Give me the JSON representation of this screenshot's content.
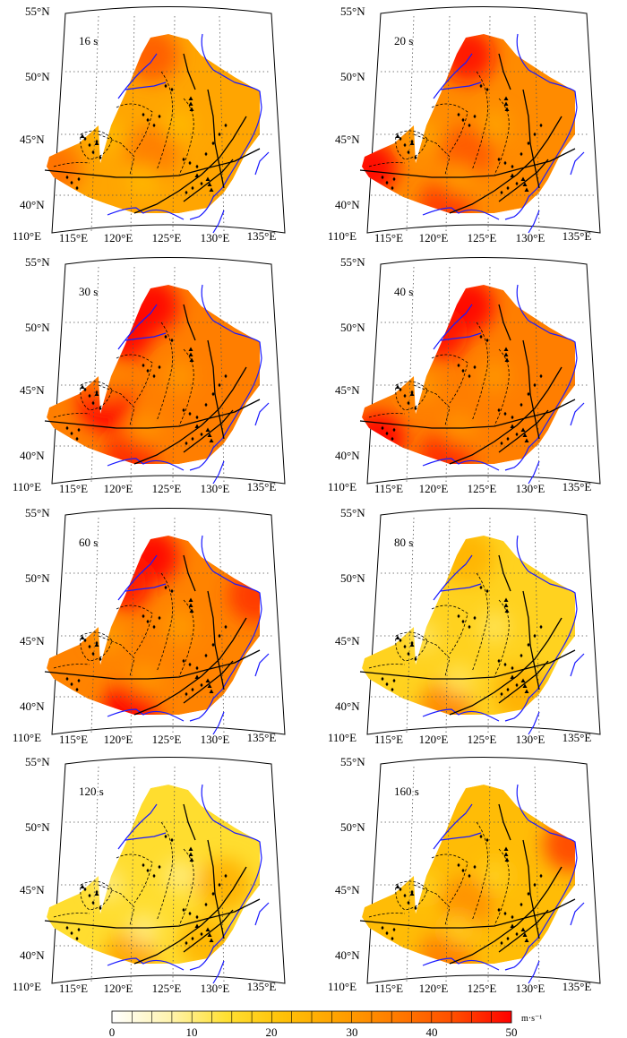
{
  "panels": [
    {
      "id": "p16",
      "period_label": "16 s",
      "intensity": 0.55,
      "hotspots": [
        [
          "n",
          0.6
        ],
        [
          "w",
          0.45
        ],
        [
          "c",
          0.35
        ]
      ]
    },
    {
      "id": "p20",
      "period_label": "20 s",
      "intensity": 0.65,
      "hotspots": [
        [
          "n",
          0.7
        ],
        [
          "w",
          0.8
        ],
        [
          "s",
          0.55
        ],
        [
          "c",
          0.4
        ]
      ]
    },
    {
      "id": "p30",
      "period_label": "30 s",
      "intensity": 0.7,
      "hotspots": [
        [
          "n",
          0.85
        ],
        [
          "nw",
          0.7
        ],
        [
          "cw",
          0.9
        ],
        [
          "s",
          0.5
        ]
      ]
    },
    {
      "id": "p40",
      "period_label": "40 s",
      "intensity": 0.7,
      "hotspots": [
        [
          "n",
          0.8
        ],
        [
          "nw",
          0.6
        ],
        [
          "sw",
          0.9
        ],
        [
          "s",
          0.5
        ]
      ]
    },
    {
      "id": "p60",
      "period_label": "60 s",
      "intensity": 0.68,
      "hotspots": [
        [
          "n",
          0.75
        ],
        [
          "nw",
          0.6
        ],
        [
          "s",
          0.7
        ],
        [
          "ne",
          0.5
        ]
      ]
    },
    {
      "id": "p80",
      "period_label": "80 s",
      "intensity": 0.35,
      "hotspots": [
        [
          "s",
          0.7
        ],
        [
          "n",
          0.3
        ],
        [
          "se",
          0.35
        ]
      ]
    },
    {
      "id": "p120",
      "period_label": "120 s",
      "intensity": 0.3,
      "hotspots": [
        [
          "s",
          0.55
        ],
        [
          "e",
          0.45
        ],
        [
          "se",
          0.4
        ]
      ]
    },
    {
      "id": "p160",
      "period_label": "160 s",
      "intensity": 0.45,
      "hotspots": [
        [
          "ne",
          0.95
        ],
        [
          "s",
          0.55
        ],
        [
          "c",
          0.4
        ]
      ]
    }
  ],
  "axes": {
    "lat_labels": [
      "55°N",
      "50°N",
      "45°N",
      "40°N"
    ],
    "lon_labels": [
      "110°E",
      "115°E",
      "120°E",
      "125°E",
      "130°E",
      "135°E"
    ]
  },
  "colorbar": {
    "tick_labels": [
      "0",
      "10",
      "20",
      "30",
      "40",
      "50"
    ],
    "unit": "m·s⁻¹",
    "min": 0,
    "max": 50,
    "step": 2.5,
    "stops": [
      "#ffffff",
      "#fff4b0",
      "#ffe033",
      "#ffc107",
      "#ffa000",
      "#ff7a00",
      "#ff4d00",
      "#ff0000"
    ]
  },
  "colors": {
    "coastline": "#1a1aff",
    "fault": "#000000",
    "grid": "#555555"
  }
}
